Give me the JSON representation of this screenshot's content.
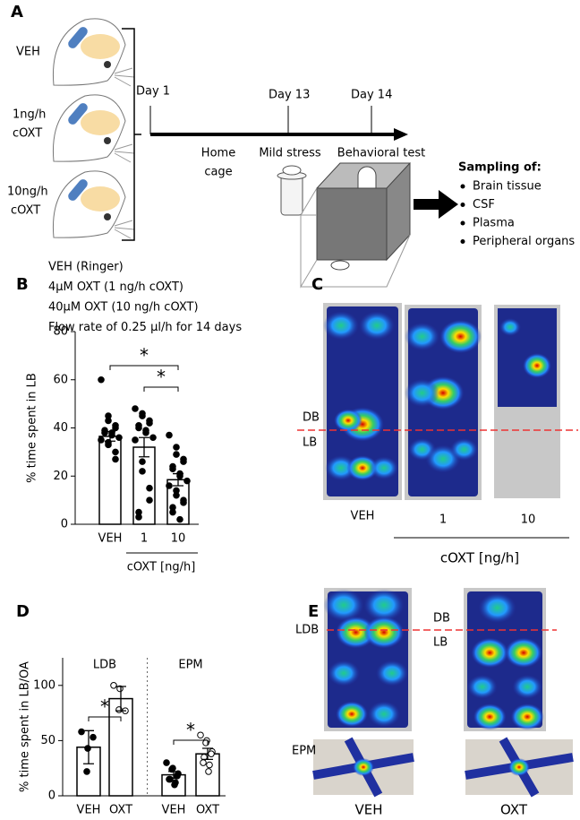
{
  "panels": {
    "a": {
      "label": "A",
      "groups": [
        [
          "VEH"
        ],
        [
          "1ng/h",
          "cOXT"
        ],
        [
          "10ng/h",
          "cOXT"
        ]
      ],
      "timeline": [
        {
          "day": "Day 1",
          "phase": [
            "Home",
            "cage"
          ]
        },
        {
          "day": "Day 13",
          "phase": [
            "Mild stress"
          ]
        },
        {
          "day": "Day 14",
          "phase": [
            "Behavioral test"
          ]
        }
      ],
      "sampling": {
        "title": "Sampling of:",
        "items": [
          "Brain tissue",
          "CSF",
          "Plasma",
          "Peripheral organs"
        ]
      },
      "notes": [
        "VEH (Ringer)",
        "4μM OXT (1 ng/h cOXT)",
        "40μM OXT (10 ng/h cOXT)",
        "Flow rate of 0.25 µl/h for 14 days"
      ]
    },
    "c": {
      "label": "C",
      "zones": [
        "DB",
        "LB"
      ],
      "images": [
        "VEH",
        "1",
        "10"
      ],
      "xlabel": "cOXT [ng/h]"
    },
    "e": {
      "label": "E",
      "rows": [
        "LDB",
        "EPM"
      ],
      "zones": [
        "DB",
        "LB"
      ],
      "images": [
        "VEH",
        "OXT"
      ]
    }
  },
  "chart_data": [
    {
      "type": "bar",
      "label": "B",
      "ylabel": "% time spent in LB",
      "categories": [
        "VEH",
        "1",
        "10"
      ],
      "values": [
        36.5,
        32,
        18.5
      ],
      "errors": [
        2,
        4,
        2.5
      ],
      "points": [
        [
          60,
          45,
          43,
          41,
          40,
          39,
          38,
          38,
          37,
          36,
          35,
          34,
          33,
          30,
          27
        ],
        [
          48,
          46,
          45,
          43,
          42,
          41,
          40,
          39,
          38,
          36,
          35,
          26,
          22,
          15,
          10,
          5,
          3
        ],
        [
          37,
          32,
          29,
          27,
          26,
          24,
          23,
          21,
          20,
          18,
          16,
          14,
          12,
          10,
          9,
          7,
          5,
          2
        ]
      ],
      "point_fills": [
        "#000000",
        "#000000",
        "#000000"
      ],
      "bar_color": "#ffffff",
      "ylim": [
        0,
        80
      ],
      "yticks": [
        0,
        20,
        40,
        60,
        80
      ],
      "xlabel": "cOXT [ng/h]",
      "annotations": [
        "*",
        "*"
      ]
    },
    {
      "type": "bar",
      "label": "D",
      "ylabel": "% time spent in LB/OA",
      "groups": [
        "LDB",
        "EPM"
      ],
      "categories": [
        "VEH",
        "OXT",
        "VEH",
        "OXT"
      ],
      "values": [
        44,
        88,
        19,
        38
      ],
      "errors": [
        15,
        11,
        3,
        5
      ],
      "points": [
        [
          58,
          43,
          22,
          53
        ],
        [
          100,
          97,
          78,
          77
        ],
        [
          30,
          25,
          24,
          20,
          18,
          15,
          15,
          12,
          10
        ],
        [
          55,
          50,
          48,
          40,
          38,
          35,
          30,
          28,
          22
        ]
      ],
      "point_fills": [
        "#000000",
        "#ffffff",
        "#000000",
        "#ffffff"
      ],
      "bar_color": "#ffffff",
      "ylim": [
        0,
        125
      ],
      "yticks": [
        0,
        50,
        100
      ],
      "annotations": [
        "*",
        "*"
      ]
    }
  ]
}
